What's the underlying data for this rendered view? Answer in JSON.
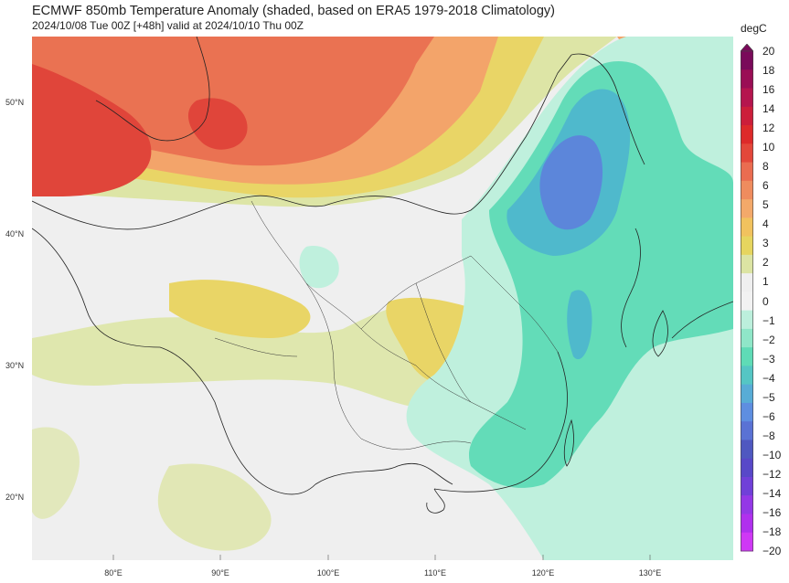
{
  "title": "ECMWF 850mb Temperature Anomaly (shaded, based on ERA5 1979-2018 Climatology)",
  "subtitle": "2024/10/08 Tue 00Z [+48h] valid at 2024/10/10 Thu 00Z",
  "lat_labels": [
    "50°N",
    "40°N",
    "30°N",
    "20°N"
  ],
  "lon_labels": [
    "80°E",
    "90°E",
    "100°E",
    "110°E",
    "120°E",
    "130°E"
  ],
  "colorbar": {
    "unit": "degC",
    "ticks": [
      "20",
      "18",
      "16",
      "14",
      "12",
      "10",
      "8",
      "6",
      "5",
      "4",
      "3",
      "2",
      "1",
      "0",
      "−1",
      "−2",
      "−3",
      "−4",
      "−5",
      "−6",
      "−8",
      "−10",
      "−12",
      "−14",
      "−16",
      "−18",
      "−20"
    ],
    "colors": [
      "#7a0a5a",
      "#9a0e55",
      "#b5154e",
      "#cc1e3a",
      "#dd2a2a",
      "#e3473a",
      "#ea6c50",
      "#ef8c5e",
      "#f3a96a",
      "#f1c25e",
      "#e6d55f",
      "#dce4a3",
      "#efefef",
      "#f2f2f2",
      "#bcefdc",
      "#8fe6c8",
      "#5fdbb6",
      "#55c6c4",
      "#58acd6",
      "#5e8ee0",
      "#5a72d4",
      "#4f58c0",
      "#5848c8",
      "#7040d8",
      "#9438e6",
      "#b030ee",
      "#cf38f5"
    ]
  },
  "map_layers": {
    "warm_strong": "#e0453a",
    "warm": "#ea7252",
    "warm_light": "#f3a46a",
    "yellow": "#e9d566",
    "yellow_light": "#dde5a6",
    "cool_light": "#bff0dd",
    "cool": "#63dcb8",
    "cool_mid": "#4fb9cc",
    "cool_strong": "#5c86da",
    "land_border": "#222222"
  }
}
